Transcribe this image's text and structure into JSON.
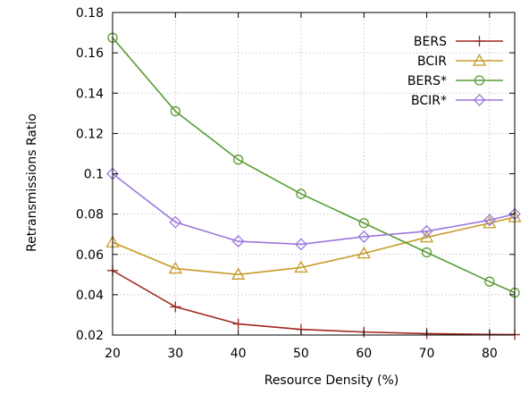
{
  "chart_data": {
    "type": "line",
    "xlabel": "Resource Density (%)",
    "ylabel": "Retransmissions Ratio",
    "xlim": [
      20,
      84
    ],
    "ylim": [
      0.02,
      0.18
    ],
    "xticks": [
      20,
      30,
      40,
      50,
      60,
      70,
      80
    ],
    "xtick_labels": [
      "20",
      "30",
      "40",
      "50",
      "60",
      "70",
      "80"
    ],
    "yticks": [
      0.02,
      0.04,
      0.06,
      0.08,
      0.1,
      0.12,
      0.14,
      0.16,
      0.18
    ],
    "ytick_labels": [
      "0.02",
      "0.04",
      "0.06",
      "0.08",
      "0.1",
      "0.12",
      "0.14",
      "0.16",
      "0.18"
    ],
    "grid": true,
    "legend_position": "top-right",
    "x": [
      20,
      30,
      40,
      50,
      60,
      70,
      80,
      84
    ],
    "series": [
      {
        "name": "BERS",
        "marker": "plus",
        "color": "#a0281e",
        "values": [
          0.052,
          0.034,
          0.0255,
          0.0228,
          0.0215,
          0.0207,
          0.0203,
          0.0202
        ]
      },
      {
        "name": "BCIR",
        "marker": "triangle",
        "color": "#c89b28",
        "values": [
          0.066,
          0.053,
          0.05,
          0.0535,
          0.0605,
          0.0685,
          0.0755,
          0.0785
        ]
      },
      {
        "name": "BERS*",
        "marker": "circle",
        "color": "#5a9b32",
        "values": [
          0.1675,
          0.131,
          0.107,
          0.09,
          0.0755,
          0.061,
          0.0465,
          0.041
        ]
      },
      {
        "name": "BCIR*",
        "marker": "diamond",
        "color": "#9b78dc",
        "values": [
          0.1,
          0.076,
          0.0665,
          0.065,
          0.0688,
          0.0715,
          0.077,
          0.08
        ]
      }
    ]
  }
}
